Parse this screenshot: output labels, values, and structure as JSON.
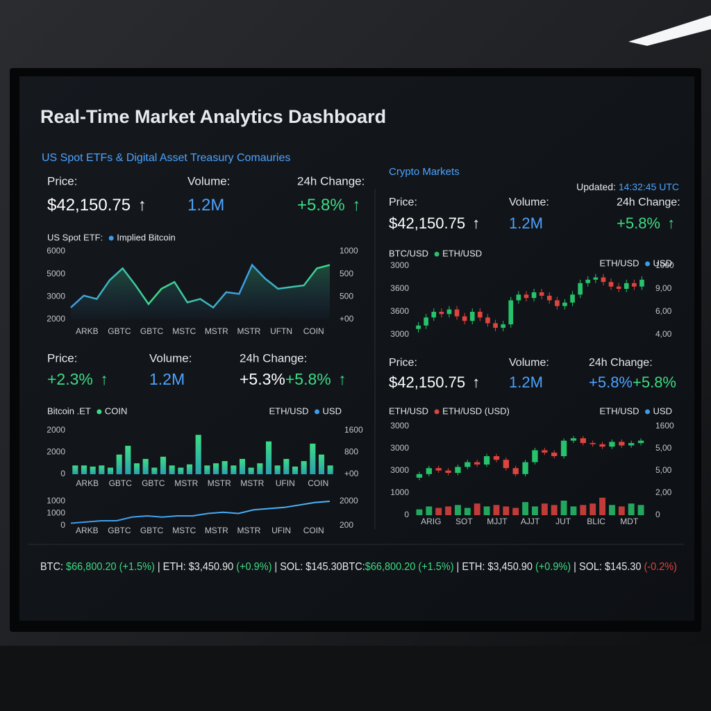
{
  "header": {
    "title": "Real-Time Market Analytics Dashboard",
    "subtitle": "US Spot ETFs & Digital Asset Treasury Comauries"
  },
  "left": {
    "stats_top": [
      {
        "label": "Price:",
        "parts": [
          {
            "text": "$42,150.75 ↑",
            "color": "#ffffff"
          }
        ]
      },
      {
        "label": "Volume:",
        "parts": [
          {
            "text": "1.2M",
            "color": "#4da3ff"
          }
        ]
      },
      {
        "label": "24h Change:",
        "parts": [
          {
            "text": "+5.8% ↑",
            "color": "#3ddc84"
          }
        ]
      }
    ],
    "chart_top": {
      "type": "area",
      "colors": [
        "#3d9be9",
        "#3ddc84"
      ],
      "legend": [
        {
          "text": "US Spot ETF:"
        },
        {
          "text": "Implied Bitcoin",
          "color": "#3d9be9"
        }
      ],
      "categories": [
        "ARKB",
        "GBTC",
        "GBTC",
        "MSTC",
        "MSTR",
        "MSTR",
        "UFTN",
        "COIN"
      ],
      "values": [
        2700,
        3400,
        3200,
        4300,
        5000,
        4000,
        2900,
        3800,
        4200,
        3000,
        3200,
        2700,
        3600,
        3500,
        5200,
        4400,
        3800,
        3900,
        4000,
        5000,
        5200
      ],
      "ylim": [
        2000,
        6000
      ],
      "y_labels": [
        "6000",
        "5000",
        "3000",
        "2000"
      ],
      "y2_labels": [
        "1000",
        "500",
        "500",
        "+00"
      ]
    },
    "stats_mid": [
      {
        "label": "Price:",
        "parts": [
          {
            "text": "+2.3% ↑",
            "color": "#3ddc84"
          }
        ]
      },
      {
        "label": "Volume:",
        "parts": [
          {
            "text": "1.2M",
            "color": "#4da3ff"
          }
        ]
      },
      {
        "label": "24h Change:",
        "parts": [
          {
            "text": "+5.3%",
            "color": "#ffffff"
          },
          {
            "text": "+5.8% ↑",
            "color": "#3ddc84"
          }
        ]
      }
    ],
    "chart_mid": {
      "type": "bar",
      "colors": [
        "#2a9fb0",
        "#3ddc84"
      ],
      "legend": [
        {
          "text": "Bitcoin .ET"
        },
        {
          "text": "COIN",
          "color": "#3ddc84"
        }
      ],
      "legend_right": [
        {
          "text": "ETH/USD"
        },
        {
          "text": "USD",
          "color": "#3d9be9"
        }
      ],
      "categories": [
        "ARKB",
        "GBTC",
        "GBTC",
        "MSTR",
        "MSTR",
        "MSTR",
        "UFIN",
        "COIN"
      ],
      "values": [
        400,
        400,
        350,
        400,
        300,
        900,
        1300,
        500,
        700,
        300,
        800,
        400,
        300,
        450,
        1800,
        400,
        500,
        600,
        400,
        700,
        300,
        500,
        1500,
        400,
        700,
        350,
        600,
        1400,
        900,
        400
      ],
      "ylim": [
        0,
        2000
      ],
      "y_labels": [
        "2000",
        "2000",
        "0"
      ],
      "y2_labels": [
        "1600",
        "800",
        "+00"
      ]
    },
    "chart_low": {
      "type": "line",
      "colors": [
        "#3d9be9",
        "#4db8ff"
      ],
      "categories": [
        "ARKB",
        "GBTC",
        "GBTC",
        "MSTC",
        "MSTR",
        "MSTR",
        "UFIN",
        "COIN"
      ],
      "values": [
        100,
        150,
        200,
        200,
        350,
        400,
        350,
        400,
        400,
        500,
        550,
        500,
        650,
        700,
        750,
        850,
        950,
        1000
      ],
      "ylim": [
        0,
        1000
      ],
      "y_labels": [
        "1000",
        "1000",
        "0"
      ],
      "y2_labels": [
        "2000",
        "200"
      ]
    }
  },
  "right": {
    "title": "Crypto Markets",
    "updated": [
      {
        "text": "Updated: ",
        "color": "#e8eaed"
      },
      {
        "text": "14:32:45 UTC",
        "color": "#4da3ff"
      }
    ],
    "stats_top": [
      {
        "label": "Price:",
        "parts": [
          {
            "text": "$42,150.75 ↑",
            "color": "#ffffff"
          }
        ]
      },
      {
        "label": "Volume:",
        "parts": [
          {
            "text": "1.2M",
            "color": "#4da3ff"
          }
        ]
      },
      {
        "label": "24h Change:",
        "parts": [
          {
            "text": "+5.8% ↑",
            "color": "#3ddc84"
          }
        ]
      }
    ],
    "chart_top": {
      "type": "candlestick",
      "colors": [
        "#27c26c",
        "#e0443e"
      ],
      "legend": [
        {
          "text": "BTC/USD"
        },
        {
          "text": "ETH/USD",
          "color": "#27c26c"
        }
      ],
      "legend_right": [
        {
          "text": "ETH/USD"
        },
        {
          "text": "USD",
          "color": "#3d9be9"
        }
      ],
      "candles": [
        [
          3050,
          3110,
          3020,
          3080
        ],
        [
          3080,
          3180,
          3050,
          3150
        ],
        [
          3150,
          3230,
          3120,
          3200
        ],
        [
          3200,
          3230,
          3150,
          3180
        ],
        [
          3180,
          3250,
          3150,
          3220
        ],
        [
          3220,
          3250,
          3130,
          3160
        ],
        [
          3160,
          3190,
          3090,
          3120
        ],
        [
          3120,
          3230,
          3090,
          3200
        ],
        [
          3200,
          3230,
          3120,
          3150
        ],
        [
          3150,
          3180,
          3070,
          3100
        ],
        [
          3100,
          3130,
          3030,
          3060
        ],
        [
          3060,
          3120,
          3030,
          3090
        ],
        [
          3090,
          3330,
          3060,
          3300
        ],
        [
          3300,
          3380,
          3270,
          3350
        ],
        [
          3350,
          3380,
          3290,
          3320
        ],
        [
          3320,
          3400,
          3290,
          3370
        ],
        [
          3370,
          3400,
          3310,
          3340
        ],
        [
          3340,
          3370,
          3270,
          3300
        ],
        [
          3300,
          3330,
          3220,
          3250
        ],
        [
          3250,
          3310,
          3220,
          3280
        ],
        [
          3280,
          3380,
          3250,
          3350
        ],
        [
          3350,
          3480,
          3320,
          3450
        ],
        [
          3450,
          3510,
          3420,
          3480
        ],
        [
          3480,
          3530,
          3450,
          3500
        ],
        [
          3500,
          3530,
          3430,
          3460
        ],
        [
          3460,
          3490,
          3390,
          3420
        ],
        [
          3420,
          3450,
          3370,
          3400
        ],
        [
          3400,
          3480,
          3370,
          3450
        ],
        [
          3450,
          3480,
          3390,
          3420
        ],
        [
          3420,
          3510,
          3390,
          3480
        ]
      ],
      "ylim": [
        3000,
        3600
      ],
      "y_labels": [
        "3000",
        "3600",
        "3600",
        "3000"
      ],
      "y2_labels": [
        "1000",
        "9,00",
        "6,00",
        "4,00"
      ]
    },
    "stats_mid": [
      {
        "label": "Price:",
        "parts": [
          {
            "text": "$42,150.75 ↑",
            "color": "#ffffff"
          }
        ]
      },
      {
        "label": "Volume:",
        "parts": [
          {
            "text": "1.2M",
            "color": "#4da3ff"
          }
        ]
      },
      {
        "label": "24h Change:",
        "parts": [
          {
            "text": "+5.8%",
            "color": "#4da3ff"
          },
          {
            "text": "+5.8%",
            "color": "#3ddc84"
          }
        ]
      }
    ],
    "chart_low": {
      "type": "candlestick",
      "colors": [
        "#27c26c",
        "#e0443e"
      ],
      "legend": [
        {
          "text": "ETH/USD"
        },
        {
          "text": "ETH/USD (USD)",
          "color": "#e0443e"
        }
      ],
      "legend_right": [
        {
          "text": "ETH/USD"
        },
        {
          "text": "USD",
          "color": "#3d9be9"
        }
      ],
      "candles": [
        [
          2970,
          3020,
          2950,
          3000
        ],
        [
          3000,
          3070,
          2980,
          3050
        ],
        [
          3050,
          3070,
          3010,
          3030
        ],
        [
          3030,
          3050,
          2990,
          3010
        ],
        [
          3010,
          3080,
          2990,
          3060
        ],
        [
          3060,
          3120,
          3040,
          3100
        ],
        [
          3100,
          3120,
          3060,
          3080
        ],
        [
          3080,
          3170,
          3060,
          3150
        ],
        [
          3150,
          3170,
          3100,
          3120
        ],
        [
          3120,
          3140,
          3030,
          3050
        ],
        [
          3050,
          3070,
          2980,
          3000
        ],
        [
          3000,
          3120,
          2980,
          3100
        ],
        [
          3100,
          3220,
          3080,
          3200
        ],
        [
          3200,
          3220,
          3160,
          3180
        ],
        [
          3180,
          3200,
          3130,
          3150
        ],
        [
          3150,
          3300,
          3130,
          3280
        ],
        [
          3280,
          3320,
          3260,
          3300
        ],
        [
          3300,
          3320,
          3240,
          3260
        ],
        [
          3260,
          3280,
          3230,
          3250
        ],
        [
          3250,
          3270,
          3210,
          3230
        ],
        [
          3230,
          3290,
          3210,
          3270
        ],
        [
          3270,
          3290,
          3220,
          3240
        ],
        [
          3240,
          3280,
          3220,
          3260
        ],
        [
          3260,
          3300,
          3240,
          3280
        ]
      ],
      "volume": [
        200,
        300,
        250,
        300,
        350,
        250,
        400,
        300,
        350,
        300,
        250,
        450,
        300,
        400,
        350,
        500,
        300,
        350,
        400,
        600,
        350,
        300,
        400,
        350
      ],
      "ylim": [
        2900,
        3400
      ],
      "vlim": [
        0,
        1000
      ],
      "y_labels": [
        "3000",
        "3000",
        "3000",
        "1000",
        "0"
      ],
      "y2_labels": [
        "1600",
        "5,00",
        "5,00",
        "2,00",
        "0"
      ],
      "x_labels": [
        "ARIG",
        "SOT",
        "MJJT",
        "AJJT",
        "JUT",
        "BLIC",
        "MDT"
      ]
    }
  },
  "ticker": [
    {
      "text": "BTC: ",
      "color": "#e8eaed"
    },
    {
      "text": "$66,800.20 (+1.5%)",
      "color": "#3ddc84"
    },
    {
      "text": " | ETH: $3,450.90 ",
      "color": "#e8eaed"
    },
    {
      "text": "(+0.9%)",
      "color": "#3ddc84"
    },
    {
      "text": " | SOL: $145.30",
      "color": "#e8eaed"
    },
    {
      "text": "BTC:",
      "color": "#e8eaed"
    },
    {
      "text": "$66,800.20 (+1.5%)",
      "color": "#3ddc84"
    },
    {
      "text": " | ETH: $3,450.90 ",
      "color": "#e8eaed"
    },
    {
      "text": "(+0.9%)",
      "color": "#3ddc84"
    },
    {
      "text": " | SOL: $145.30 ",
      "color": "#e8eaed"
    },
    {
      "text": "(-0.2%)",
      "color": "#e0443e"
    }
  ]
}
